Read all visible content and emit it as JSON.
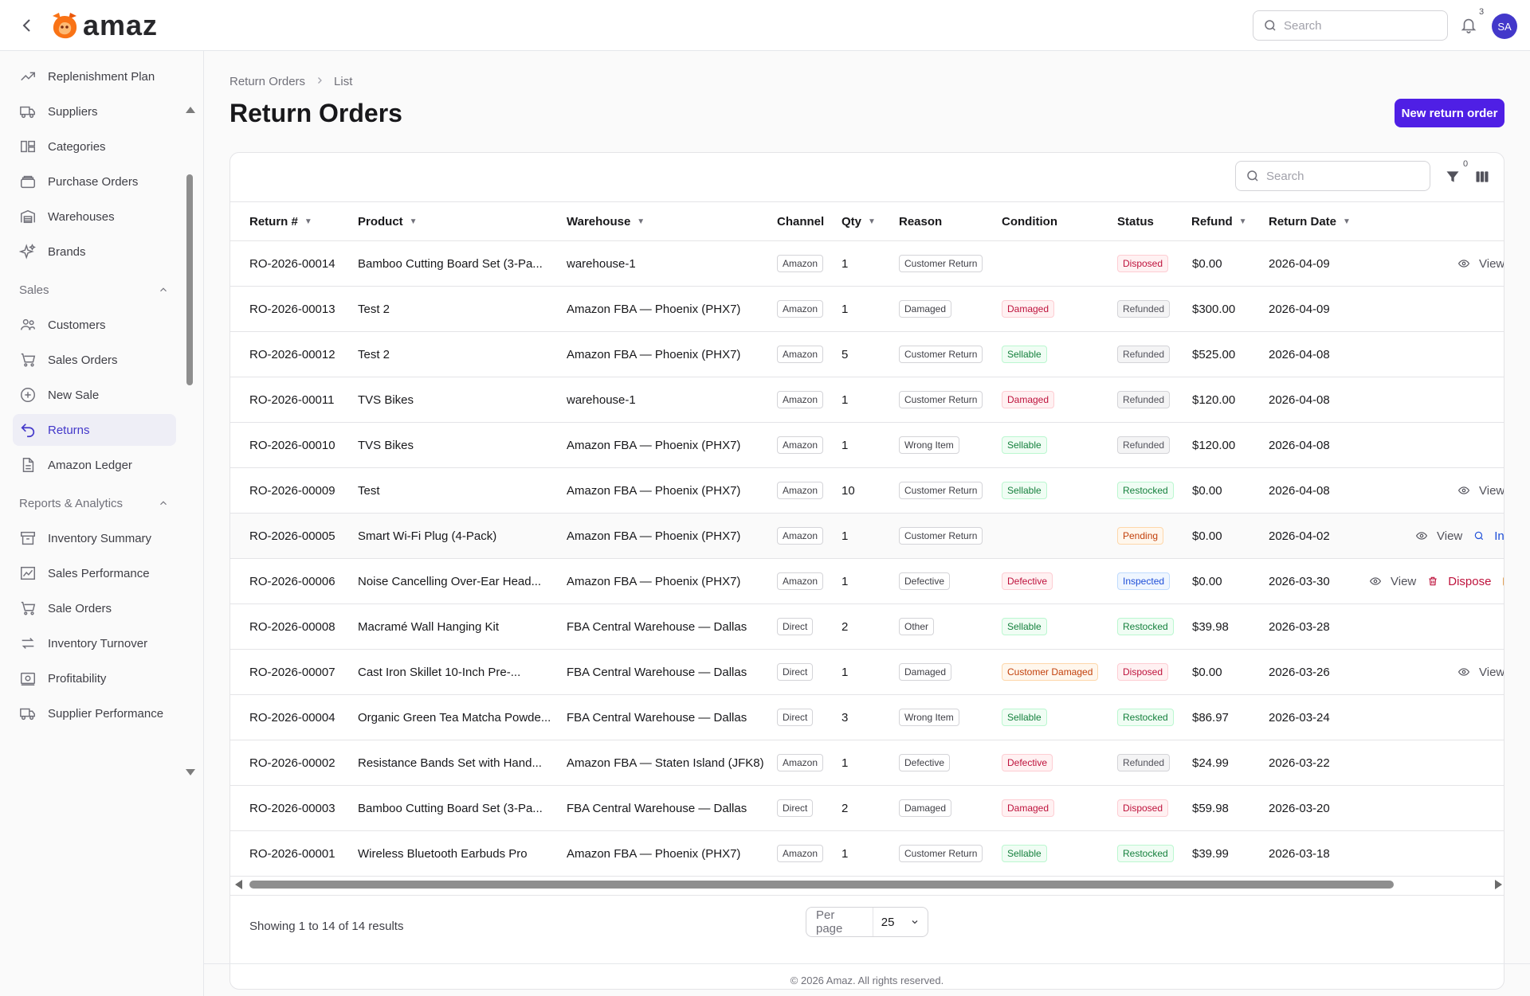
{
  "app": {
    "name": "amaz"
  },
  "topbar": {
    "search_placeholder": "Search",
    "notifications_count": "3",
    "avatar_initials": "SA"
  },
  "sidebar": {
    "items_top": [
      {
        "label": "Replenishment Plan",
        "icon": "trend-icon"
      },
      {
        "label": "Suppliers",
        "icon": "truck-icon"
      },
      {
        "label": "Categories",
        "icon": "categories-icon"
      },
      {
        "label": "Purchase Orders",
        "icon": "stack-icon"
      },
      {
        "label": "Warehouses",
        "icon": "warehouse-icon"
      },
      {
        "label": "Brands",
        "icon": "sparkles-icon"
      }
    ],
    "group_sales": "Sales",
    "items_sales": [
      {
        "label": "Customers",
        "icon": "users-icon"
      },
      {
        "label": "Sales Orders",
        "icon": "cart-icon"
      },
      {
        "label": "New Sale",
        "icon": "plus-circle-icon"
      },
      {
        "label": "Returns",
        "icon": "return-icon",
        "active": true
      },
      {
        "label": "Amazon Ledger",
        "icon": "document-icon"
      }
    ],
    "group_reports": "Reports & Analytics",
    "items_reports": [
      {
        "label": "Inventory Summary",
        "icon": "archive-icon"
      },
      {
        "label": "Sales Performance",
        "icon": "chart-icon"
      },
      {
        "label": "Sale Orders",
        "icon": "cart-icon"
      },
      {
        "label": "Inventory Turnover",
        "icon": "arrows-icon"
      },
      {
        "label": "Profitability",
        "icon": "cash-icon"
      },
      {
        "label": "Supplier Performance",
        "icon": "truck-icon"
      }
    ]
  },
  "breadcrumb": {
    "root": "Return Orders",
    "current": "List"
  },
  "page": {
    "title": "Return Orders",
    "new_button": "New return order"
  },
  "table": {
    "search_placeholder": "Search",
    "filter_count": "0",
    "columns": {
      "return_no": "Return #",
      "product": "Product",
      "warehouse": "Warehouse",
      "channel": "Channel",
      "qty": "Qty",
      "reason": "Reason",
      "condition": "Condition",
      "status": "Status",
      "refund": "Refund",
      "return_date": "Return Date"
    },
    "action_labels": {
      "view": "View",
      "dispose": "Dispose",
      "inspect": "Insp"
    },
    "rows": [
      {
        "id": "RO-2026-00014",
        "product": "Bamboo Cutting Board Set (3-Pa...",
        "warehouse": "warehouse-1",
        "channel": "Amazon",
        "qty": "1",
        "reason": "Customer Return",
        "condition": "",
        "condition_tone": "",
        "status": "Disposed",
        "status_tone": "red",
        "refund": "$0.00",
        "date": "2026-04-09",
        "actions": [
          "view",
          "edit"
        ]
      },
      {
        "id": "RO-2026-00013",
        "product": "Test 2",
        "warehouse": "Amazon FBA — Phoenix (PHX7)",
        "channel": "Amazon",
        "qty": "1",
        "reason": "Damaged",
        "condition": "Damaged",
        "condition_tone": "red",
        "status": "Refunded",
        "status_tone": "gray",
        "refund": "$300.00",
        "date": "2026-04-09",
        "actions": []
      },
      {
        "id": "RO-2026-00012",
        "product": "Test 2",
        "warehouse": "Amazon FBA — Phoenix (PHX7)",
        "channel": "Amazon",
        "qty": "5",
        "reason": "Customer Return",
        "condition": "Sellable",
        "condition_tone": "green",
        "status": "Refunded",
        "status_tone": "gray",
        "refund": "$525.00",
        "date": "2026-04-08",
        "actions": []
      },
      {
        "id": "RO-2026-00011",
        "product": "TVS Bikes",
        "warehouse": "warehouse-1",
        "channel": "Amazon",
        "qty": "1",
        "reason": "Customer Return",
        "condition": "Damaged",
        "condition_tone": "red",
        "status": "Refunded",
        "status_tone": "gray",
        "refund": "$120.00",
        "date": "2026-04-08",
        "actions": []
      },
      {
        "id": "RO-2026-00010",
        "product": "TVS Bikes",
        "warehouse": "Amazon FBA — Phoenix (PHX7)",
        "channel": "Amazon",
        "qty": "1",
        "reason": "Wrong Item",
        "condition": "Sellable",
        "condition_tone": "green",
        "status": "Refunded",
        "status_tone": "gray",
        "refund": "$120.00",
        "date": "2026-04-08",
        "actions": []
      },
      {
        "id": "RO-2026-00009",
        "product": "Test",
        "warehouse": "Amazon FBA — Phoenix (PHX7)",
        "channel": "Amazon",
        "qty": "10",
        "reason": "Customer Return",
        "condition": "Sellable",
        "condition_tone": "green",
        "status": "Restocked",
        "status_tone": "green",
        "refund": "$0.00",
        "date": "2026-04-08",
        "actions": [
          "view"
        ]
      },
      {
        "id": "RO-2026-00005",
        "product": "Smart Wi-Fi Plug (4-Pack)",
        "warehouse": "Amazon FBA — Phoenix (PHX7)",
        "channel": "Amazon",
        "qty": "1",
        "reason": "Customer Return",
        "condition": "",
        "condition_tone": "",
        "status": "Pending",
        "status_tone": "orange",
        "refund": "$0.00",
        "date": "2026-04-02",
        "actions": [
          "view",
          "inspect"
        ],
        "highlight": true
      },
      {
        "id": "RO-2026-00006",
        "product": "Noise Cancelling Over-Ear Head...",
        "warehouse": "Amazon FBA — Phoenix (PHX7)",
        "channel": "Amazon",
        "qty": "1",
        "reason": "Defective",
        "condition": "Defective",
        "condition_tone": "red",
        "status": "Inspected",
        "status_tone": "blue",
        "refund": "$0.00",
        "date": "2026-03-30",
        "actions": [
          "view",
          "dispose",
          "edit"
        ]
      },
      {
        "id": "RO-2026-00008",
        "product": "Macramé Wall Hanging Kit",
        "warehouse": "FBA Central Warehouse — Dallas",
        "channel": "Direct",
        "qty": "2",
        "reason": "Other",
        "condition": "Sellable",
        "condition_tone": "green",
        "status": "Restocked",
        "status_tone": "green",
        "refund": "$39.98",
        "date": "2026-03-28",
        "actions": []
      },
      {
        "id": "RO-2026-00007",
        "product": "Cast Iron Skillet 10-Inch Pre-...",
        "warehouse": "FBA Central Warehouse — Dallas",
        "channel": "Direct",
        "qty": "1",
        "reason": "Damaged",
        "condition": "Customer Damaged",
        "condition_tone": "orange",
        "status": "Disposed",
        "status_tone": "red",
        "refund": "$0.00",
        "date": "2026-03-26",
        "actions": [
          "view",
          "edit"
        ]
      },
      {
        "id": "RO-2026-00004",
        "product": "Organic Green Tea Matcha Powde...",
        "warehouse": "FBA Central Warehouse — Dallas",
        "channel": "Direct",
        "qty": "3",
        "reason": "Wrong Item",
        "condition": "Sellable",
        "condition_tone": "green",
        "status": "Restocked",
        "status_tone": "green",
        "refund": "$86.97",
        "date": "2026-03-24",
        "actions": []
      },
      {
        "id": "RO-2026-00002",
        "product": "Resistance Bands Set with Hand...",
        "warehouse": "Amazon FBA — Staten Island (JFK8)",
        "channel": "Amazon",
        "qty": "1",
        "reason": "Defective",
        "condition": "Defective",
        "condition_tone": "red",
        "status": "Refunded",
        "status_tone": "gray",
        "refund": "$24.99",
        "date": "2026-03-22",
        "actions": []
      },
      {
        "id": "RO-2026-00003",
        "product": "Bamboo Cutting Board Set (3-Pa...",
        "warehouse": "FBA Central Warehouse — Dallas",
        "channel": "Direct",
        "qty": "2",
        "reason": "Damaged",
        "condition": "Damaged",
        "condition_tone": "red",
        "status": "Disposed",
        "status_tone": "red",
        "refund": "$59.98",
        "date": "2026-03-20",
        "actions": []
      },
      {
        "id": "RO-2026-00001",
        "product": "Wireless Bluetooth Earbuds Pro",
        "warehouse": "Amazon FBA — Phoenix (PHX7)",
        "channel": "Amazon",
        "qty": "1",
        "reason": "Customer Return",
        "condition": "Sellable",
        "condition_tone": "green",
        "status": "Restocked",
        "status_tone": "green",
        "refund": "$39.99",
        "date": "2026-03-18",
        "actions": []
      }
    ]
  },
  "pagination": {
    "showing": "Showing 1 to 14 of 14 results",
    "per_page_label": "Per page",
    "per_page_value": "25"
  },
  "footer": {
    "copyright": "© 2026 Amaz. All rights reserved."
  },
  "colors": {
    "accent": "#4f1fe5",
    "logo": "#f97316"
  }
}
